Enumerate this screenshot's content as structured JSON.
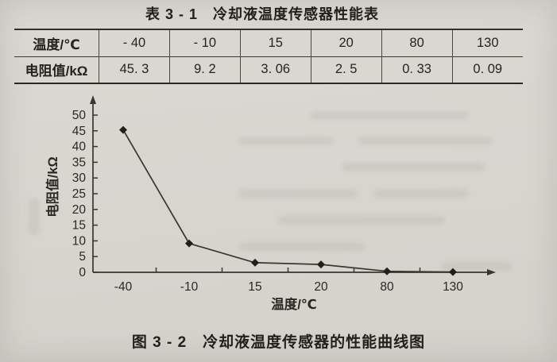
{
  "page": {
    "table_title": "表 3 - 1　冷却液温度传感器性能表",
    "figure_caption": "图 3 - 2　冷却液温度传感器的性能曲线图"
  },
  "table": {
    "row_headers": [
      "温度/℃",
      "电阻值/kΩ"
    ],
    "temperatures": [
      "- 40",
      "- 10",
      "15",
      "20",
      "80",
      "130"
    ],
    "resistances": [
      "45. 3",
      "9. 2",
      "3. 06",
      "2. 5",
      "0. 33",
      "0. 09"
    ]
  },
  "chart_data": {
    "type": "line",
    "categories": [
      -40,
      -10,
      15,
      20,
      80,
      130
    ],
    "xtick_labels": [
      "-40",
      "-10",
      "15",
      "20",
      "80",
      "130"
    ],
    "values": [
      45.3,
      9.2,
      3.06,
      2.5,
      0.33,
      0.09
    ],
    "series_name": "电阻值",
    "title": "",
    "xlabel": "温度/℃",
    "ylabel": "电阻值/kΩ",
    "ylim": [
      0,
      50
    ],
    "ytick_step": 5,
    "x_spacing": "equal",
    "grid": false,
    "legend": false,
    "marker": "diamond",
    "line_color": "#3a352f"
  },
  "colors": {
    "paper": "#d8d5cf",
    "ink": "#26231e",
    "axis": "#3a352f"
  }
}
